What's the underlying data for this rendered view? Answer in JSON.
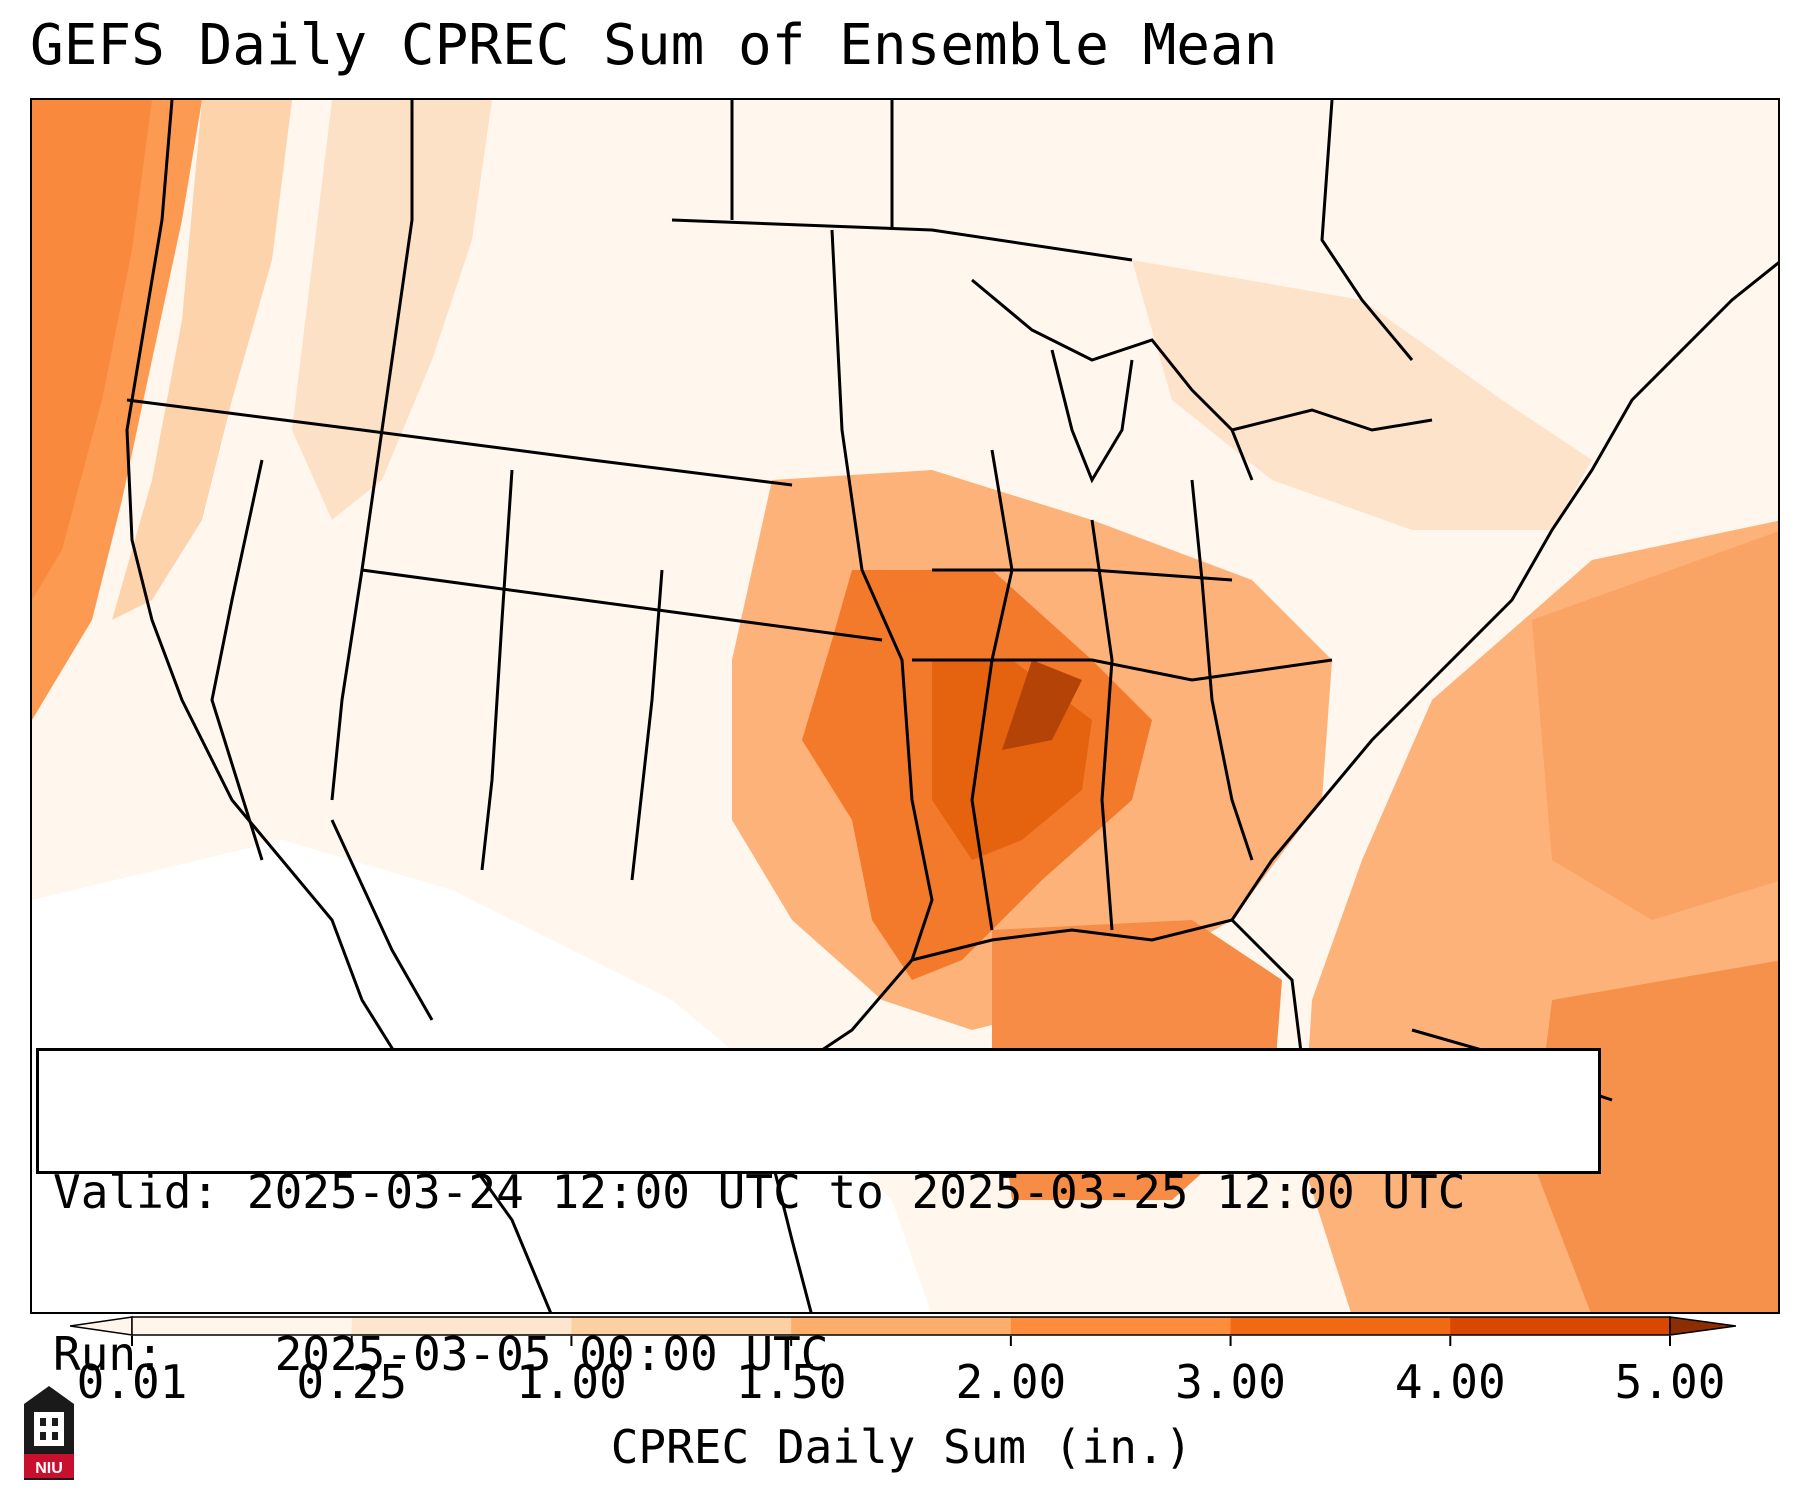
{
  "title": "GEFS Daily CPREC Sum of Ensemble Mean",
  "info": {
    "valid_label": "Valid:",
    "valid_text": "2025-03-24 12:00 UTC to 2025-03-25 12:00 UTC",
    "run_label": "Run:",
    "run_text": "2025-03-05 00:00 UTC"
  },
  "colorbar": {
    "label": "CPREC Daily Sum (in.)",
    "ticks": [
      "0.01",
      "0.25",
      "1.00",
      "1.50",
      "2.00",
      "3.00",
      "4.00",
      "5.00"
    ],
    "colors": [
      "#fff5eb",
      "#fee6ce",
      "#fdd0a2",
      "#fdae6b",
      "#fd8d3c",
      "#f16913",
      "#d94801",
      "#8c2d04"
    ],
    "extend": "both"
  },
  "logo": {
    "text": "NIU",
    "color": "#c8102e"
  }
}
